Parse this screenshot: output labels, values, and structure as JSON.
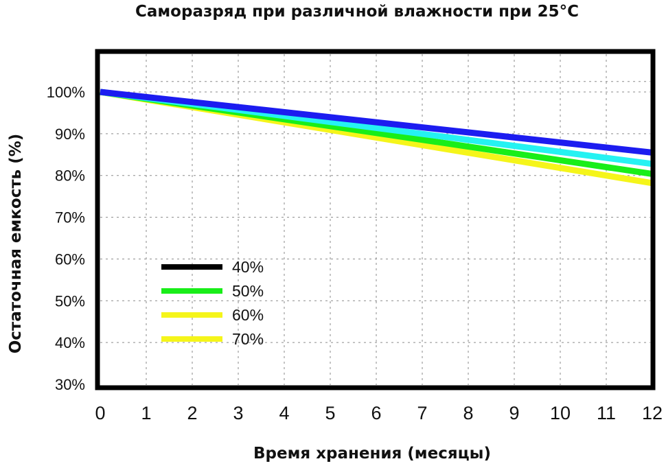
{
  "chart_data": {
    "type": "line",
    "title": "Саморазряд при различной влажности при 25°С",
    "xlabel": "Время хранения (месяцы)",
    "ylabel": "Остаточная емкость   (%)",
    "x": [
      0,
      12
    ],
    "xlim": [
      0,
      12
    ],
    "ylim": [
      30,
      100
    ],
    "xticks": [
      "0",
      "1",
      "2",
      "3",
      "4",
      "5",
      "6",
      "7",
      "8",
      "9",
      "10",
      "11",
      "12"
    ],
    "yticks": [
      {
        "value": 100,
        "label": "100%"
      },
      {
        "value": 90,
        "label": "90%"
      },
      {
        "value": 80,
        "label": "80%"
      },
      {
        "value": 70,
        "label": "70%"
      },
      {
        "value": 60,
        "label": "60%"
      },
      {
        "value": 50,
        "label": "50%"
      },
      {
        "value": 40,
        "label": "40%"
      },
      {
        "value": 30,
        "label": "30%"
      }
    ],
    "grid": true,
    "legend_position": "lower-left",
    "legend": [
      {
        "label": "40%",
        "color": "#000000"
      },
      {
        "label": "50%",
        "color": "#19ee19"
      },
      {
        "label": "60%",
        "color": "#f5f51a"
      },
      {
        "label": "70%",
        "color": "#f5f51a"
      }
    ],
    "series": [
      {
        "color": "#1c1cf0",
        "values": [
          100,
          85.5
        ]
      },
      {
        "color": "#25f2f2",
        "values": [
          100,
          82.8
        ]
      },
      {
        "color": "#19ee19",
        "values": [
          100,
          80.4
        ]
      },
      {
        "color": "#f5f51a",
        "values": [
          100,
          78.2
        ]
      }
    ]
  }
}
